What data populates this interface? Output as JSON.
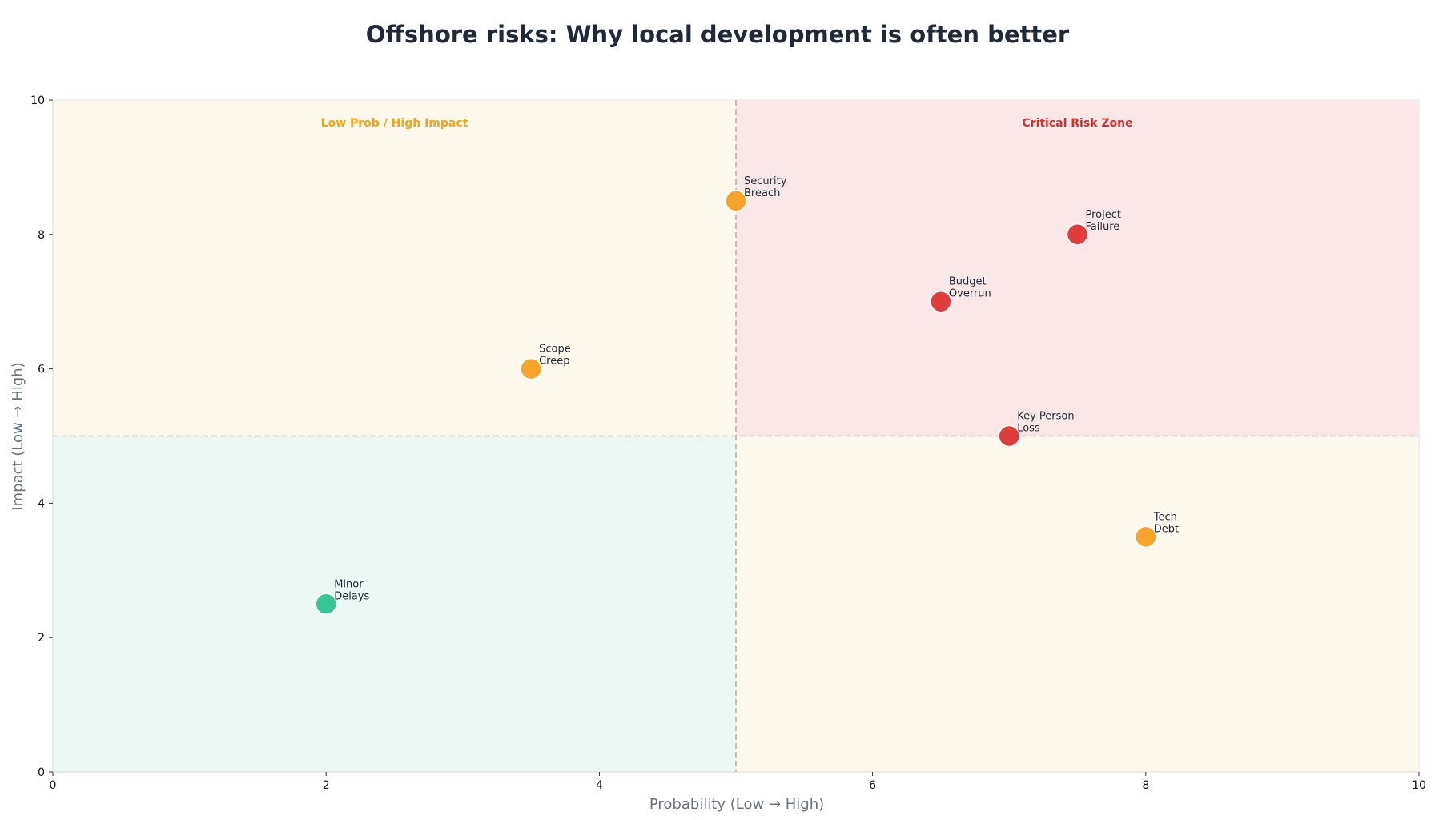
{
  "chart_data": {
    "type": "scatter",
    "title": "Offshore risks: Why local development is often better",
    "xlabel": "Probability (Low → High)",
    "ylabel": "Impact (Low → High)",
    "xlim": [
      0,
      10
    ],
    "ylim": [
      0,
      10
    ],
    "xticks": [
      0,
      2,
      4,
      6,
      8,
      10
    ],
    "yticks": [
      0,
      2,
      4,
      6,
      8,
      10
    ],
    "grid": false,
    "quadrant_split": {
      "x": 5,
      "y": 5
    },
    "quadrants": [
      {
        "id": "top-left",
        "label": "Low Prob / High Impact",
        "fill": "#fdf8ec",
        "label_color": "#f0a616"
      },
      {
        "id": "top-right",
        "label": "Critical Risk Zone",
        "fill": "#fae8e8",
        "label_color": "#d32f2f"
      },
      {
        "id": "bottom-left",
        "label": "",
        "fill": "#ecf8f3",
        "label_color": "#10b981"
      },
      {
        "id": "bottom-right",
        "label": "",
        "fill": "#fdf8ec",
        "label_color": "#f0a616"
      }
    ],
    "category_colors": {
      "high": "#e03c3c",
      "medium": "#f6a42a",
      "low": "#34c795"
    },
    "points": [
      {
        "label": "Security\nBreach",
        "x": 5.0,
        "y": 8.5,
        "category": "medium"
      },
      {
        "label": "Project\nFailure",
        "x": 7.5,
        "y": 8.0,
        "category": "high"
      },
      {
        "label": "Budget\nOverrun",
        "x": 6.5,
        "y": 7.0,
        "category": "high"
      },
      {
        "label": "Scope\nCreep",
        "x": 3.5,
        "y": 6.0,
        "category": "medium"
      },
      {
        "label": "Key Person\nLoss",
        "x": 7.0,
        "y": 5.0,
        "category": "high"
      },
      {
        "label": "Tech\nDebt",
        "x": 8.0,
        "y": 3.5,
        "category": "medium"
      },
      {
        "label": "Minor\nDelays",
        "x": 2.0,
        "y": 2.5,
        "category": "low"
      }
    ]
  }
}
